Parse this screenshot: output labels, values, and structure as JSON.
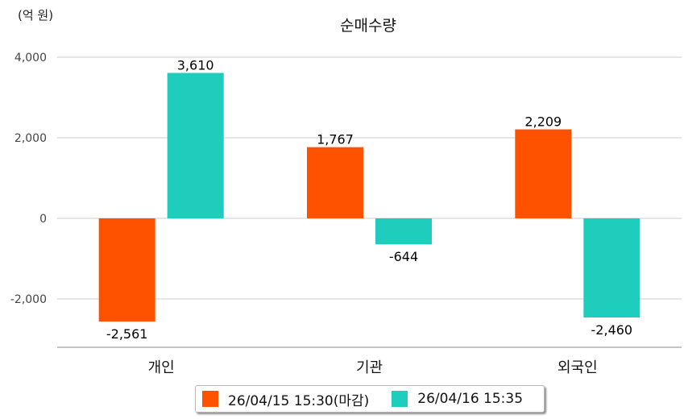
{
  "chart_data": {
    "type": "bar",
    "title": "순매수량",
    "ylabel": "(억 원)",
    "xlabel": "",
    "categories": [
      "개인",
      "기관",
      "외국인"
    ],
    "series": [
      {
        "name": "26/04/15 15:30(마감)",
        "color": "#ff5200",
        "values": [
          -2561,
          1767,
          2209
        ],
        "labels": [
          "-2,561",
          "1,767",
          "2,209"
        ]
      },
      {
        "name": "26/04/16 15:35",
        "color": "#1ecdbb",
        "values": [
          3610,
          -644,
          -2460
        ],
        "labels": [
          "3,610",
          "-644",
          "-2,460"
        ]
      }
    ],
    "yticks": [
      4000,
      2000,
      0,
      -2000
    ],
    "ytick_labels": [
      "4,000",
      "2,000",
      "0",
      "-2,000"
    ],
    "ylim": [
      -3200,
      4000
    ],
    "grid": true,
    "legend_position": "bottom"
  }
}
